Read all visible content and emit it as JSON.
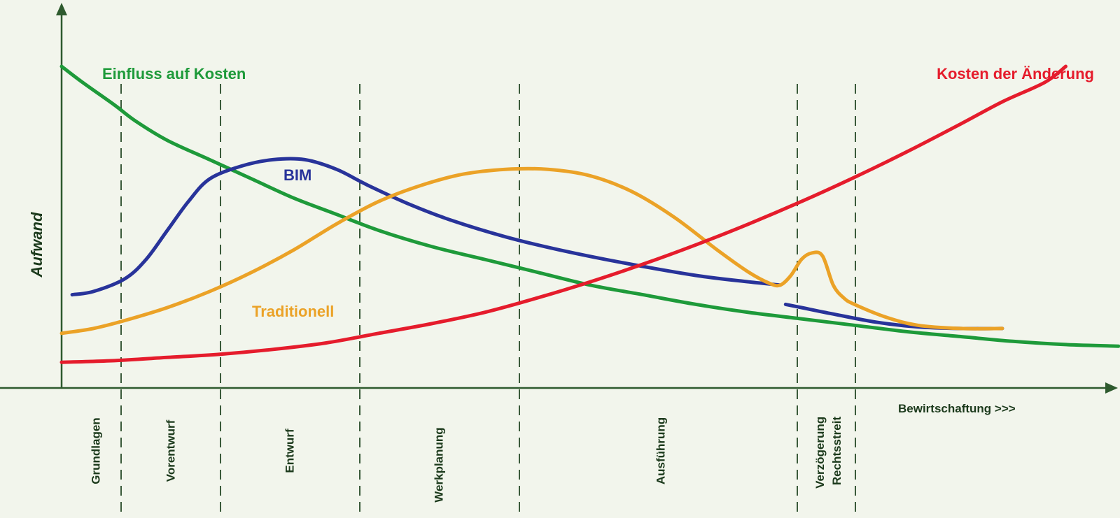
{
  "chart_data": {
    "type": "line",
    "title": "",
    "xlabel": "",
    "ylabel": "Aufwand",
    "grid": false,
    "legend": "none",
    "phases": [
      "Grundlagen",
      "Vorentwurf",
      "Entwurf",
      "Werkplanung",
      "Ausführung",
      "Verzögerung Rechtsstreit",
      "Bewirtschaftung >>>"
    ],
    "series": [
      {
        "name": "Einfluss auf Kosten",
        "color": "#1e9a3a",
        "points": [
          [
            0,
            100
          ],
          [
            2,
            95
          ],
          [
            5,
            88
          ],
          [
            7,
            83
          ],
          [
            10,
            77
          ],
          [
            14,
            71
          ],
          [
            18,
            65
          ],
          [
            22,
            59
          ],
          [
            26,
            54
          ],
          [
            30,
            49
          ],
          [
            35,
            44
          ],
          [
            40,
            40
          ],
          [
            45,
            36
          ],
          [
            50,
            32
          ],
          [
            55,
            29
          ],
          [
            60,
            26
          ],
          [
            65,
            23.5
          ],
          [
            70,
            21.5
          ],
          [
            75,
            19.5
          ],
          [
            80,
            17.5
          ],
          [
            85,
            16
          ],
          [
            90,
            14.5
          ],
          [
            95,
            13.5
          ],
          [
            100,
            13
          ]
        ]
      },
      {
        "name": "BIM",
        "color": "#28339a",
        "segments": [
          [
            [
              1,
              29
            ],
            [
              3,
              30
            ],
            [
              6,
              34
            ],
            [
              8,
              40
            ],
            [
              10,
              49
            ],
            [
              12,
              58
            ],
            [
              14,
              65
            ],
            [
              17,
              69
            ],
            [
              20,
              71
            ],
            [
              23,
              71
            ],
            [
              26,
              68
            ],
            [
              29,
              63
            ],
            [
              33,
              57
            ],
            [
              37,
              52
            ],
            [
              42,
              47
            ],
            [
              47,
              43
            ],
            [
              53,
              39
            ],
            [
              60,
              35
            ],
            [
              65,
              33
            ],
            [
              68,
              32
            ]
          ],
          [
            [
              68.5,
              26
            ],
            [
              70,
              25
            ],
            [
              73,
              23
            ],
            [
              77,
              20.5
            ],
            [
              81,
              19
            ],
            [
              85,
              18.5
            ],
            [
              89,
              18.5
            ]
          ]
        ]
      },
      {
        "name": "Traditionell",
        "color": "#eba227",
        "points": [
          [
            0,
            17
          ],
          [
            3,
            18.5
          ],
          [
            6,
            21
          ],
          [
            10,
            25
          ],
          [
            14,
            30
          ],
          [
            18,
            36
          ],
          [
            22,
            43
          ],
          [
            26,
            51
          ],
          [
            30,
            58
          ],
          [
            34,
            63
          ],
          [
            38,
            66.5
          ],
          [
            42,
            68
          ],
          [
            46,
            68
          ],
          [
            50,
            66
          ],
          [
            54,
            61
          ],
          [
            58,
            53
          ],
          [
            62,
            43
          ],
          [
            65,
            36
          ],
          [
            67,
            32.5
          ],
          [
            68,
            32
          ],
          [
            69,
            35
          ],
          [
            70,
            40
          ],
          [
            71,
            42
          ],
          [
            72,
            41
          ],
          [
            73,
            32
          ],
          [
            74,
            28
          ],
          [
            75,
            26
          ],
          [
            78,
            22
          ],
          [
            81,
            19.5
          ],
          [
            85,
            18.5
          ],
          [
            89,
            18.5
          ]
        ]
      },
      {
        "name": "Kosten der Änderung",
        "color": "#e51c2c",
        "points": [
          [
            0,
            8
          ],
          [
            5,
            8.5
          ],
          [
            10,
            9.5
          ],
          [
            15,
            10.5
          ],
          [
            20,
            12
          ],
          [
            25,
            14
          ],
          [
            30,
            17
          ],
          [
            35,
            20
          ],
          [
            40,
            23.5
          ],
          [
            45,
            28
          ],
          [
            50,
            33
          ],
          [
            55,
            38.5
          ],
          [
            60,
            44.5
          ],
          [
            65,
            51
          ],
          [
            70,
            58
          ],
          [
            75,
            65.5
          ],
          [
            80,
            73.5
          ],
          [
            85,
            82
          ],
          [
            89,
            89
          ],
          [
            93,
            95
          ],
          [
            95,
            100
          ]
        ]
      }
    ],
    "annotations": [
      "Einfluss auf Kosten",
      "Kosten der Änderung",
      "BIM",
      "Traditionell"
    ]
  }
}
